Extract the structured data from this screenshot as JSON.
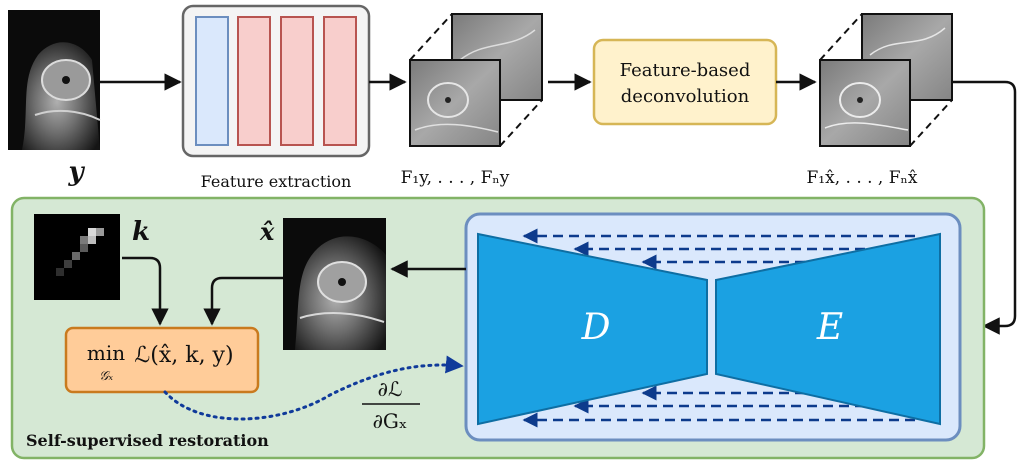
{
  "input": {
    "symbol": "y"
  },
  "feature_extraction": {
    "caption": "Feature extraction"
  },
  "features_y": {
    "caption": "F₁y, . . . , Fₙy"
  },
  "deconvolution": {
    "line1": "Feature-based",
    "line2": "deconvolution"
  },
  "features_xhat": {
    "caption": "F₁x̂, . . . , Fₙx̂"
  },
  "restoration": {
    "title": "Self-supervised restoration",
    "kernel_symbol": "k",
    "xhat_symbol": "x̂",
    "objective_min": "min",
    "objective_sub": "𝒢ₓ",
    "objective_expr": "ℒ(x̂, k, y)",
    "grad_num": "∂ℒ",
    "grad_den": "∂Gₓ",
    "decoder": "D",
    "encoder": "E"
  },
  "colors": {
    "panel_fill": "#d5e8d4",
    "panel_stroke": "#82b366",
    "net_fill": "#dae8fc",
    "net_stroke": "#6c8ebf",
    "trapezoid": "#1ba1e2",
    "deconv_fill": "#fff2cc",
    "deconv_stroke": "#d6b656",
    "objective_fill": "#ffcc99",
    "objective_stroke": "#c97a1e",
    "blue_layer": "#dae8fc",
    "red_layer": "#f8cecc"
  }
}
